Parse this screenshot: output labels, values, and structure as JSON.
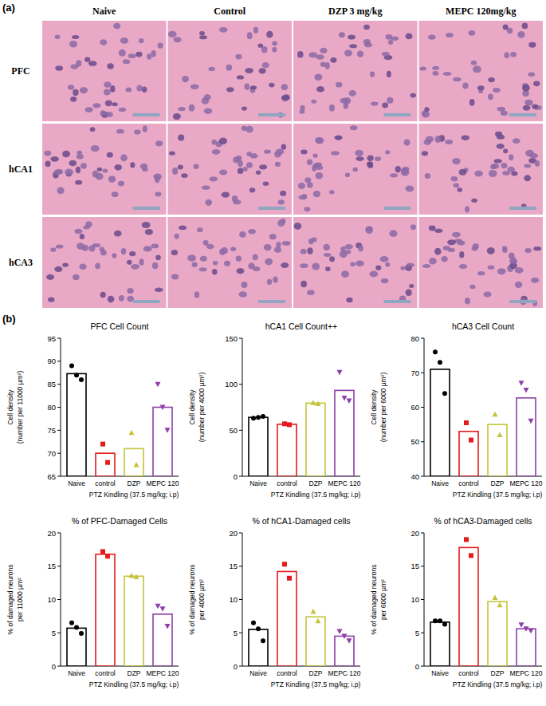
{
  "panel_a": {
    "label": "(a)",
    "columns": [
      "Naive",
      "Control",
      "DZP 3 mg/kg",
      "MEPC 120mg/kg"
    ],
    "rows": [
      "PFC",
      "hCA1",
      "hCA3"
    ]
  },
  "panel_b": {
    "label": "(b)"
  },
  "chart_data": [
    {
      "type": "bar",
      "title": "PFC Cell Count",
      "ylabel": [
        "Cell density",
        "(number per 11000 µm²)"
      ],
      "xlabel": "PTZ Kindling (37.5 mg/kg; i.p)",
      "categories": [
        "Naive",
        "control",
        "DZP",
        "MEPC 120"
      ],
      "values": [
        87.3,
        70,
        71,
        80
      ],
      "colors": [
        "#000000",
        "#e41a1c",
        "#c4c43a",
        "#8e3fa8"
      ],
      "points": [
        [
          89,
          87,
          86
        ],
        [
          72,
          68
        ],
        [
          74.5,
          67.5
        ],
        [
          85,
          80,
          75
        ]
      ],
      "ylim": [
        65,
        95
      ],
      "yticks": [
        65,
        70,
        75,
        80,
        85,
        90,
        95
      ]
    },
    {
      "type": "bar",
      "title": "hCA1 Cell Count++",
      "ylabel": [
        "Cell density",
        "(number per 4000 µm²)"
      ],
      "xlabel": "PTZ Kindling (37.5 mg/kg; i.p)",
      "categories": [
        "Naive",
        "control",
        "DZP",
        "MEPC 120"
      ],
      "values": [
        64,
        56.5,
        79.5,
        93.3
      ],
      "colors": [
        "#000000",
        "#e41a1c",
        "#c4c43a",
        "#8e3fa8"
      ],
      "points": [
        [
          63,
          64,
          65
        ],
        [
          57,
          56
        ],
        [
          80,
          79
        ],
        [
          113,
          85,
          82
        ]
      ],
      "ylim": [
        0,
        150
      ],
      "yticks": [
        0,
        50,
        100,
        150
      ]
    },
    {
      "type": "bar",
      "title": "hCA3 Cell Count",
      "ylabel": [
        "Cell density",
        "(number per 6000 µm²)"
      ],
      "xlabel": "PTZ Kindling (37.5 mg/kg; i.p)",
      "categories": [
        "Naive",
        "control",
        "DZP",
        "MEPC 120"
      ],
      "values": [
        71,
        53,
        55,
        62.7
      ],
      "colors": [
        "#000000",
        "#e41a1c",
        "#c4c43a",
        "#8e3fa8"
      ],
      "points": [
        [
          76,
          73,
          64
        ],
        [
          55.5,
          50.5
        ],
        [
          58,
          52
        ],
        [
          67,
          65,
          56
        ]
      ],
      "ylim": [
        40,
        80
      ],
      "yticks": [
        40,
        50,
        60,
        70,
        80
      ]
    },
    {
      "type": "bar",
      "title": "% of PFC-Damaged Cells",
      "ylabel": [
        "% of damaged neurons",
        "per 11000 µm²"
      ],
      "xlabel": "PTZ Kindling (37.5 mg/kg; i.p)",
      "categories": [
        "Naive",
        "control",
        "DZP",
        "MEPC 120"
      ],
      "values": [
        5.7,
        16.8,
        13.5,
        7.8
      ],
      "colors": [
        "#000000",
        "#e41a1c",
        "#c4c43a",
        "#8e3fa8"
      ],
      "points": [
        [
          6.5,
          5.8,
          4.9
        ],
        [
          17.2,
          16.5
        ],
        [
          13.6,
          13.4
        ],
        [
          9,
          8.6,
          6
        ]
      ],
      "ylim": [
        0,
        20
      ],
      "yticks": [
        0,
        5,
        10,
        15,
        20
      ]
    },
    {
      "type": "bar",
      "title": "% of hCA1-Damaged cells",
      "ylabel": [
        "% of damaged neurons",
        "per 4000 µm²"
      ],
      "xlabel": "PTZ Kindling (37.5 mg/kg; i.p)",
      "categories": [
        "Naive",
        "control",
        "DZP",
        "MEPC 120"
      ],
      "values": [
        5.5,
        14.2,
        7.4,
        4.5
      ],
      "colors": [
        "#000000",
        "#e41a1c",
        "#c4c43a",
        "#8e3fa8"
      ],
      "points": [
        [
          6.5,
          5.6,
          3.8
        ],
        [
          15.3,
          13.2
        ],
        [
          8.2,
          6.8
        ],
        [
          5.2,
          4.5,
          3.8
        ]
      ],
      "ylim": [
        0,
        20
      ],
      "yticks": [
        0,
        5,
        10,
        15,
        20
      ]
    },
    {
      "type": "bar",
      "title": "% of hCA3-Damaged cells",
      "ylabel": [
        "% of damaged neurons",
        "per 6000 µm²"
      ],
      "xlabel": "PTZ Kindling (37.5 mg/kg; i.p)",
      "categories": [
        "Naive",
        "control",
        "DZP",
        "MEPC 120"
      ],
      "values": [
        6.6,
        17.8,
        9.7,
        5.6
      ],
      "colors": [
        "#000000",
        "#e41a1c",
        "#c4c43a",
        "#8e3fa8"
      ],
      "points": [
        [
          6.8,
          6.8,
          6.3
        ],
        [
          19,
          16.6
        ],
        [
          10.3,
          9.2
        ],
        [
          6.2,
          5.6,
          5.3
        ]
      ],
      "ylim": [
        0,
        20
      ],
      "yticks": [
        0,
        5,
        10,
        15,
        20
      ]
    }
  ]
}
